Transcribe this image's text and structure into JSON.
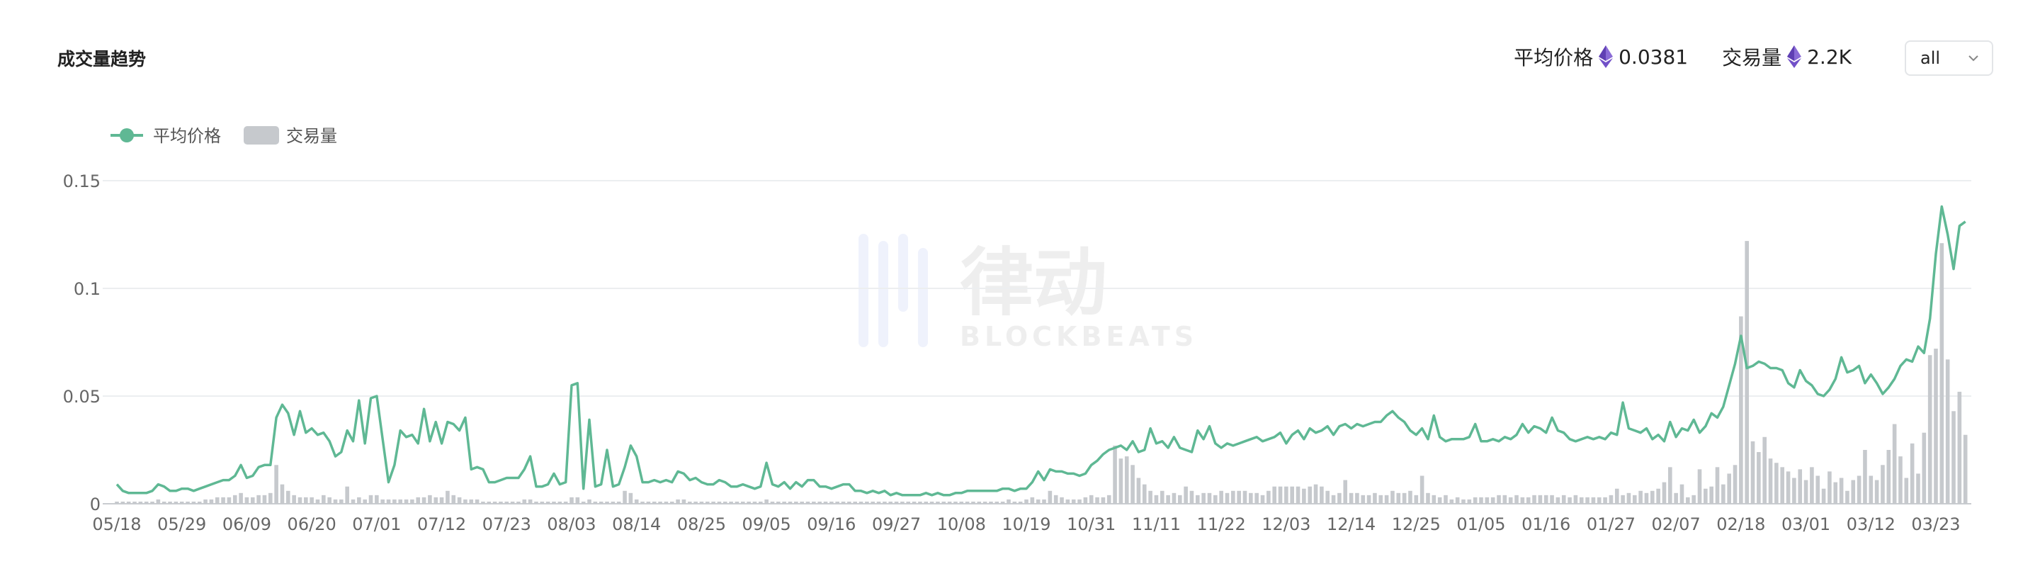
{
  "header": {
    "title": "成交量趋势",
    "stats": [
      {
        "label": "平均价格",
        "value": "0.0381"
      },
      {
        "label": "交易量",
        "value": "2.2K"
      }
    ],
    "select": "all"
  },
  "watermark": [
    "律动",
    "BLOCKBEATS"
  ],
  "chart_data": {
    "type": "combo",
    "categories": [
      "05/18",
      null,
      null,
      null,
      null,
      null,
      null,
      null,
      null,
      null,
      null,
      "05/29",
      null,
      null,
      null,
      null,
      null,
      null,
      null,
      null,
      null,
      null,
      "06/09",
      null,
      null,
      null,
      null,
      null,
      null,
      null,
      null,
      null,
      null,
      "06/20",
      null,
      null,
      null,
      null,
      null,
      null,
      null,
      null,
      null,
      null,
      "07/01",
      null,
      null,
      null,
      null,
      null,
      null,
      null,
      null,
      null,
      null,
      "07/12",
      null,
      null,
      null,
      null,
      null,
      null,
      null,
      null,
      null,
      null,
      "07/23",
      null,
      null,
      null,
      null,
      null,
      null,
      null,
      null,
      null,
      null,
      "08/03",
      null,
      null,
      null,
      null,
      null,
      null,
      null,
      null,
      null,
      null,
      "08/14",
      null,
      null,
      null,
      null,
      null,
      null,
      null,
      null,
      null,
      null,
      "08/25",
      null,
      null,
      null,
      null,
      null,
      null,
      null,
      null,
      null,
      null,
      "09/05",
      null,
      null,
      null,
      null,
      null,
      null,
      null,
      null,
      null,
      null,
      "09/16",
      null,
      null,
      null,
      null,
      null,
      null,
      null,
      null,
      null,
      null,
      "09/27",
      null,
      null,
      null,
      null,
      null,
      null,
      null,
      null,
      null,
      null,
      "10/08",
      null,
      null,
      null,
      null,
      null,
      null,
      null,
      null,
      null,
      null,
      "10/19",
      null,
      null,
      null,
      null,
      null,
      null,
      null,
      null,
      null,
      null,
      "10/31",
      null,
      null,
      null,
      null,
      null,
      null,
      null,
      null,
      null,
      null,
      "11/11",
      null,
      null,
      null,
      null,
      null,
      null,
      null,
      null,
      null,
      null,
      "11/22",
      null,
      null,
      null,
      null,
      null,
      null,
      null,
      null,
      null,
      null,
      "12/03",
      null,
      null,
      null,
      null,
      null,
      null,
      null,
      null,
      null,
      null,
      "12/14",
      null,
      null,
      null,
      null,
      null,
      null,
      null,
      null,
      null,
      null,
      "12/25",
      null,
      null,
      null,
      null,
      null,
      null,
      null,
      null,
      null,
      null,
      "01/05",
      null,
      null,
      null,
      null,
      null,
      null,
      null,
      null,
      null,
      null,
      "01/16",
      null,
      null,
      null,
      null,
      null,
      null,
      null,
      null,
      null,
      null,
      "01/27",
      null,
      null,
      null,
      null,
      null,
      null,
      null,
      null,
      null,
      null,
      "02/07",
      null,
      null,
      null,
      null,
      null,
      null,
      null,
      null,
      null,
      null,
      "02/18",
      null,
      null,
      null,
      null,
      null,
      null,
      null,
      null,
      null,
      null,
      "03/01",
      null,
      null,
      null,
      null,
      null,
      null,
      null,
      null,
      null,
      null,
      "03/12",
      null,
      null,
      null,
      null,
      null,
      null,
      null,
      null,
      null,
      null,
      "03/23",
      null,
      null,
      null,
      null,
      null
    ],
    "series": [
      {
        "name": "交易量",
        "type": "bar",
        "color": "#c6c9cd",
        "values": [
          0.001,
          0.001,
          0.001,
          0.001,
          0.001,
          0.001,
          0.001,
          0.002,
          0.001,
          0.001,
          0.001,
          0.001,
          0.001,
          0.001,
          0.001,
          0.002,
          0.002,
          0.003,
          0.003,
          0.003,
          0.004,
          0.005,
          0.003,
          0.003,
          0.004,
          0.004,
          0.005,
          0.018,
          0.009,
          0.006,
          0.004,
          0.003,
          0.003,
          0.003,
          0.002,
          0.004,
          0.003,
          0.002,
          0.002,
          0.008,
          0.002,
          0.003,
          0.002,
          0.004,
          0.004,
          0.002,
          0.002,
          0.002,
          0.002,
          0.002,
          0.002,
          0.003,
          0.003,
          0.004,
          0.003,
          0.003,
          0.006,
          0.004,
          0.003,
          0.002,
          0.002,
          0.002,
          0.001,
          0.001,
          0.001,
          0.001,
          0.001,
          0.001,
          0.001,
          0.002,
          0.002,
          0.001,
          0.001,
          0.001,
          0.001,
          0.001,
          0.001,
          0.003,
          0.003,
          0.001,
          0.002,
          0.001,
          0.001,
          0.001,
          0.001,
          0.001,
          0.006,
          0.005,
          0.002,
          0.001,
          0.001,
          0.001,
          0.001,
          0.001,
          0.001,
          0.002,
          0.002,
          0.001,
          0.001,
          0.001,
          0.001,
          0.001,
          0.001,
          0.001,
          0.001,
          0.001,
          0.001,
          0.001,
          0.001,
          0.001,
          0.002,
          0.001,
          0.001,
          0.001,
          0.001,
          0.001,
          0.001,
          0.001,
          0.001,
          0.001,
          0.001,
          0.001,
          0.001,
          0.001,
          0.001,
          0.001,
          0.001,
          0.001,
          0.001,
          0.001,
          0.001,
          0.001,
          0.001,
          0.001,
          0.001,
          0.001,
          0.001,
          0.001,
          0.001,
          0.001,
          0.001,
          0.001,
          0.001,
          0.001,
          0.001,
          0.001,
          0.001,
          0.001,
          0.001,
          0.001,
          0.001,
          0.002,
          0.001,
          0.001,
          0.002,
          0.003,
          0.002,
          0.002,
          0.006,
          0.004,
          0.003,
          0.002,
          0.002,
          0.002,
          0.003,
          0.004,
          0.003,
          0.003,
          0.004,
          0.027,
          0.021,
          0.022,
          0.018,
          0.012,
          0.009,
          0.006,
          0.004,
          0.006,
          0.004,
          0.005,
          0.004,
          0.008,
          0.006,
          0.004,
          0.005,
          0.005,
          0.004,
          0.006,
          0.005,
          0.006,
          0.006,
          0.006,
          0.005,
          0.005,
          0.004,
          0.006,
          0.008,
          0.008,
          0.008,
          0.008,
          0.008,
          0.007,
          0.008,
          0.009,
          0.008,
          0.006,
          0.004,
          0.005,
          0.011,
          0.005,
          0.005,
          0.004,
          0.004,
          0.005,
          0.004,
          0.004,
          0.006,
          0.005,
          0.005,
          0.006,
          0.004,
          0.013,
          0.005,
          0.004,
          0.003,
          0.004,
          0.002,
          0.003,
          0.002,
          0.002,
          0.003,
          0.003,
          0.003,
          0.003,
          0.004,
          0.004,
          0.003,
          0.004,
          0.003,
          0.003,
          0.004,
          0.004,
          0.004,
          0.004,
          0.003,
          0.004,
          0.003,
          0.004,
          0.003,
          0.003,
          0.003,
          0.003,
          0.003,
          0.004,
          0.007,
          0.004,
          0.005,
          0.004,
          0.006,
          0.005,
          0.006,
          0.007,
          0.01,
          0.017,
          0.005,
          0.009,
          0.003,
          0.004,
          0.016,
          0.007,
          0.008,
          0.017,
          0.009,
          0.014,
          0.018,
          0.087,
          0.122,
          0.029,
          0.024,
          0.031,
          0.021,
          0.019,
          0.017,
          0.015,
          0.012,
          0.016,
          0.011,
          0.017,
          0.013,
          0.007,
          0.015,
          0.01,
          0.012,
          0.006,
          0.011,
          0.013,
          0.025,
          0.013,
          0.011,
          0.018,
          0.025,
          0.037,
          0.022,
          0.012,
          0.028,
          0.014,
          0.033,
          0.069,
          0.072,
          0.121,
          0.067,
          0.043,
          0.052,
          0.032
        ]
      },
      {
        "name": "平均价格",
        "type": "line",
        "color": "#5fb894",
        "values": [
          0.009,
          0.006,
          0.005,
          0.005,
          0.005,
          0.005,
          0.006,
          0.009,
          0.008,
          0.006,
          0.006,
          0.007,
          0.007,
          0.006,
          0.007,
          0.008,
          0.009,
          0.01,
          0.011,
          0.011,
          0.013,
          0.018,
          0.012,
          0.013,
          0.017,
          0.018,
          0.018,
          0.04,
          0.046,
          0.042,
          0.032,
          0.043,
          0.033,
          0.035,
          0.032,
          0.033,
          0.029,
          0.022,
          0.024,
          0.034,
          0.029,
          0.048,
          0.028,
          0.049,
          0.05,
          0.03,
          0.01,
          0.018,
          0.034,
          0.031,
          0.032,
          0.028,
          0.044,
          0.029,
          0.038,
          0.028,
          0.038,
          0.037,
          0.034,
          0.04,
          0.016,
          0.017,
          0.016,
          0.01,
          0.01,
          0.011,
          0.012,
          0.012,
          0.012,
          0.016,
          0.022,
          0.008,
          0.008,
          0.009,
          0.014,
          0.009,
          0.01,
          0.055,
          0.056,
          0.007,
          0.039,
          0.008,
          0.009,
          0.025,
          0.008,
          0.009,
          0.017,
          0.027,
          0.022,
          0.01,
          0.01,
          0.011,
          0.01,
          0.011,
          0.01,
          0.015,
          0.014,
          0.011,
          0.012,
          0.01,
          0.009,
          0.009,
          0.011,
          0.01,
          0.008,
          0.008,
          0.009,
          0.008,
          0.007,
          0.008,
          0.019,
          0.009,
          0.008,
          0.01,
          0.007,
          0.01,
          0.008,
          0.011,
          0.011,
          0.008,
          0.008,
          0.007,
          0.008,
          0.009,
          0.009,
          0.006,
          0.006,
          0.005,
          0.006,
          0.005,
          0.006,
          0.004,
          0.005,
          0.004,
          0.004,
          0.004,
          0.004,
          0.005,
          0.004,
          0.005,
          0.004,
          0.004,
          0.005,
          0.005,
          0.006,
          0.006,
          0.006,
          0.006,
          0.006,
          0.006,
          0.007,
          0.007,
          0.006,
          0.007,
          0.007,
          0.01,
          0.015,
          0.011,
          0.016,
          0.015,
          0.015,
          0.014,
          0.014,
          0.013,
          0.014,
          0.018,
          0.02,
          0.023,
          0.025,
          0.026,
          0.027,
          0.025,
          0.029,
          0.024,
          0.025,
          0.035,
          0.028,
          0.029,
          0.026,
          0.031,
          0.026,
          0.025,
          0.024,
          0.034,
          0.03,
          0.036,
          0.028,
          0.026,
          0.028,
          0.027,
          0.028,
          0.029,
          0.03,
          0.031,
          0.029,
          0.03,
          0.031,
          0.033,
          0.028,
          0.032,
          0.034,
          0.03,
          0.035,
          0.033,
          0.034,
          0.036,
          0.032,
          0.036,
          0.037,
          0.035,
          0.037,
          0.036,
          0.037,
          0.038,
          0.038,
          0.041,
          0.043,
          0.04,
          0.038,
          0.034,
          0.032,
          0.035,
          0.03,
          0.041,
          0.031,
          0.029,
          0.03,
          0.03,
          0.03,
          0.031,
          0.037,
          0.029,
          0.029,
          0.03,
          0.029,
          0.031,
          0.03,
          0.032,
          0.037,
          0.033,
          0.036,
          0.035,
          0.033,
          0.04,
          0.034,
          0.033,
          0.03,
          0.029,
          0.03,
          0.031,
          0.03,
          0.031,
          0.03,
          0.033,
          0.032,
          0.047,
          0.035,
          0.034,
          0.033,
          0.035,
          0.03,
          0.032,
          0.029,
          0.038,
          0.031,
          0.035,
          0.034,
          0.039,
          0.033,
          0.036,
          0.042,
          0.04,
          0.045,
          0.055,
          0.065,
          0.078,
          0.063,
          0.064,
          0.066,
          0.065,
          0.063,
          0.063,
          0.062,
          0.056,
          0.054,
          0.062,
          0.057,
          0.055,
          0.051,
          0.05,
          0.053,
          0.058,
          0.068,
          0.061,
          0.062,
          0.064,
          0.056,
          0.06,
          0.056,
          0.051,
          0.054,
          0.058,
          0.064,
          0.067,
          0.066,
          0.073,
          0.07,
          0.086,
          0.116,
          0.138,
          0.125,
          0.109,
          0.129,
          0.131
        ]
      }
    ],
    "ylim": [
      0,
      0.15
    ],
    "yticks": [
      0,
      0.05,
      0.1,
      0.15
    ],
    "grid": true,
    "legend": "top-left"
  }
}
